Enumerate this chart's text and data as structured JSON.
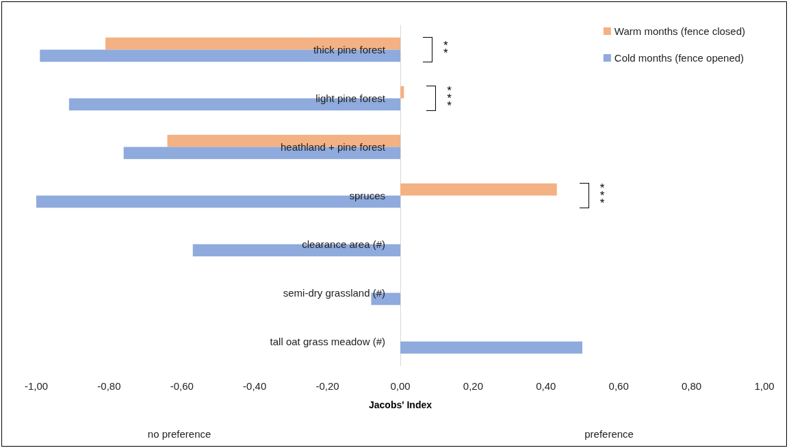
{
  "chart_data": {
    "type": "bar",
    "orientation": "horizontal",
    "xlabel": "Jacobs' Index",
    "categories": [
      "thick pine forest",
      "light pine forest",
      "heathland + pine forest",
      "spruces",
      "clearance area (#)",
      "semi-dry grassland (#)",
      "tall oat grass meadow (#)"
    ],
    "series": [
      {
        "name": "Warm months (fence closed)",
        "color": "#f4b183",
        "values": [
          -0.81,
          0.01,
          -0.64,
          0.43,
          null,
          null,
          null
        ]
      },
      {
        "name": "Cold months (fence opened)",
        "color": "#8faadc",
        "values": [
          -0.99,
          -0.91,
          -0.76,
          -1.0,
          -0.57,
          -0.08,
          0.5
        ]
      }
    ],
    "xlim": [
      -1,
      1
    ],
    "xticks": [
      {
        "value": -1,
        "label": "-1,00"
      },
      {
        "value": -0.8,
        "label": "-0,80"
      },
      {
        "value": -0.6,
        "label": "-0,60"
      },
      {
        "value": -0.4,
        "label": "-0,40"
      },
      {
        "value": -0.2,
        "label": "-0,20"
      },
      {
        "value": 0,
        "label": "0,00"
      },
      {
        "value": 0.2,
        "label": "0,20"
      },
      {
        "value": 0.4,
        "label": "0,40"
      },
      {
        "value": 0.6,
        "label": "0,60"
      },
      {
        "value": 0.8,
        "label": "0,80"
      },
      {
        "value": 1,
        "label": "1,00"
      }
    ],
    "grid": false,
    "legend": "top right",
    "annotations": [
      "**",
      "***",
      "***",
      "no preference",
      "preference"
    ]
  }
}
